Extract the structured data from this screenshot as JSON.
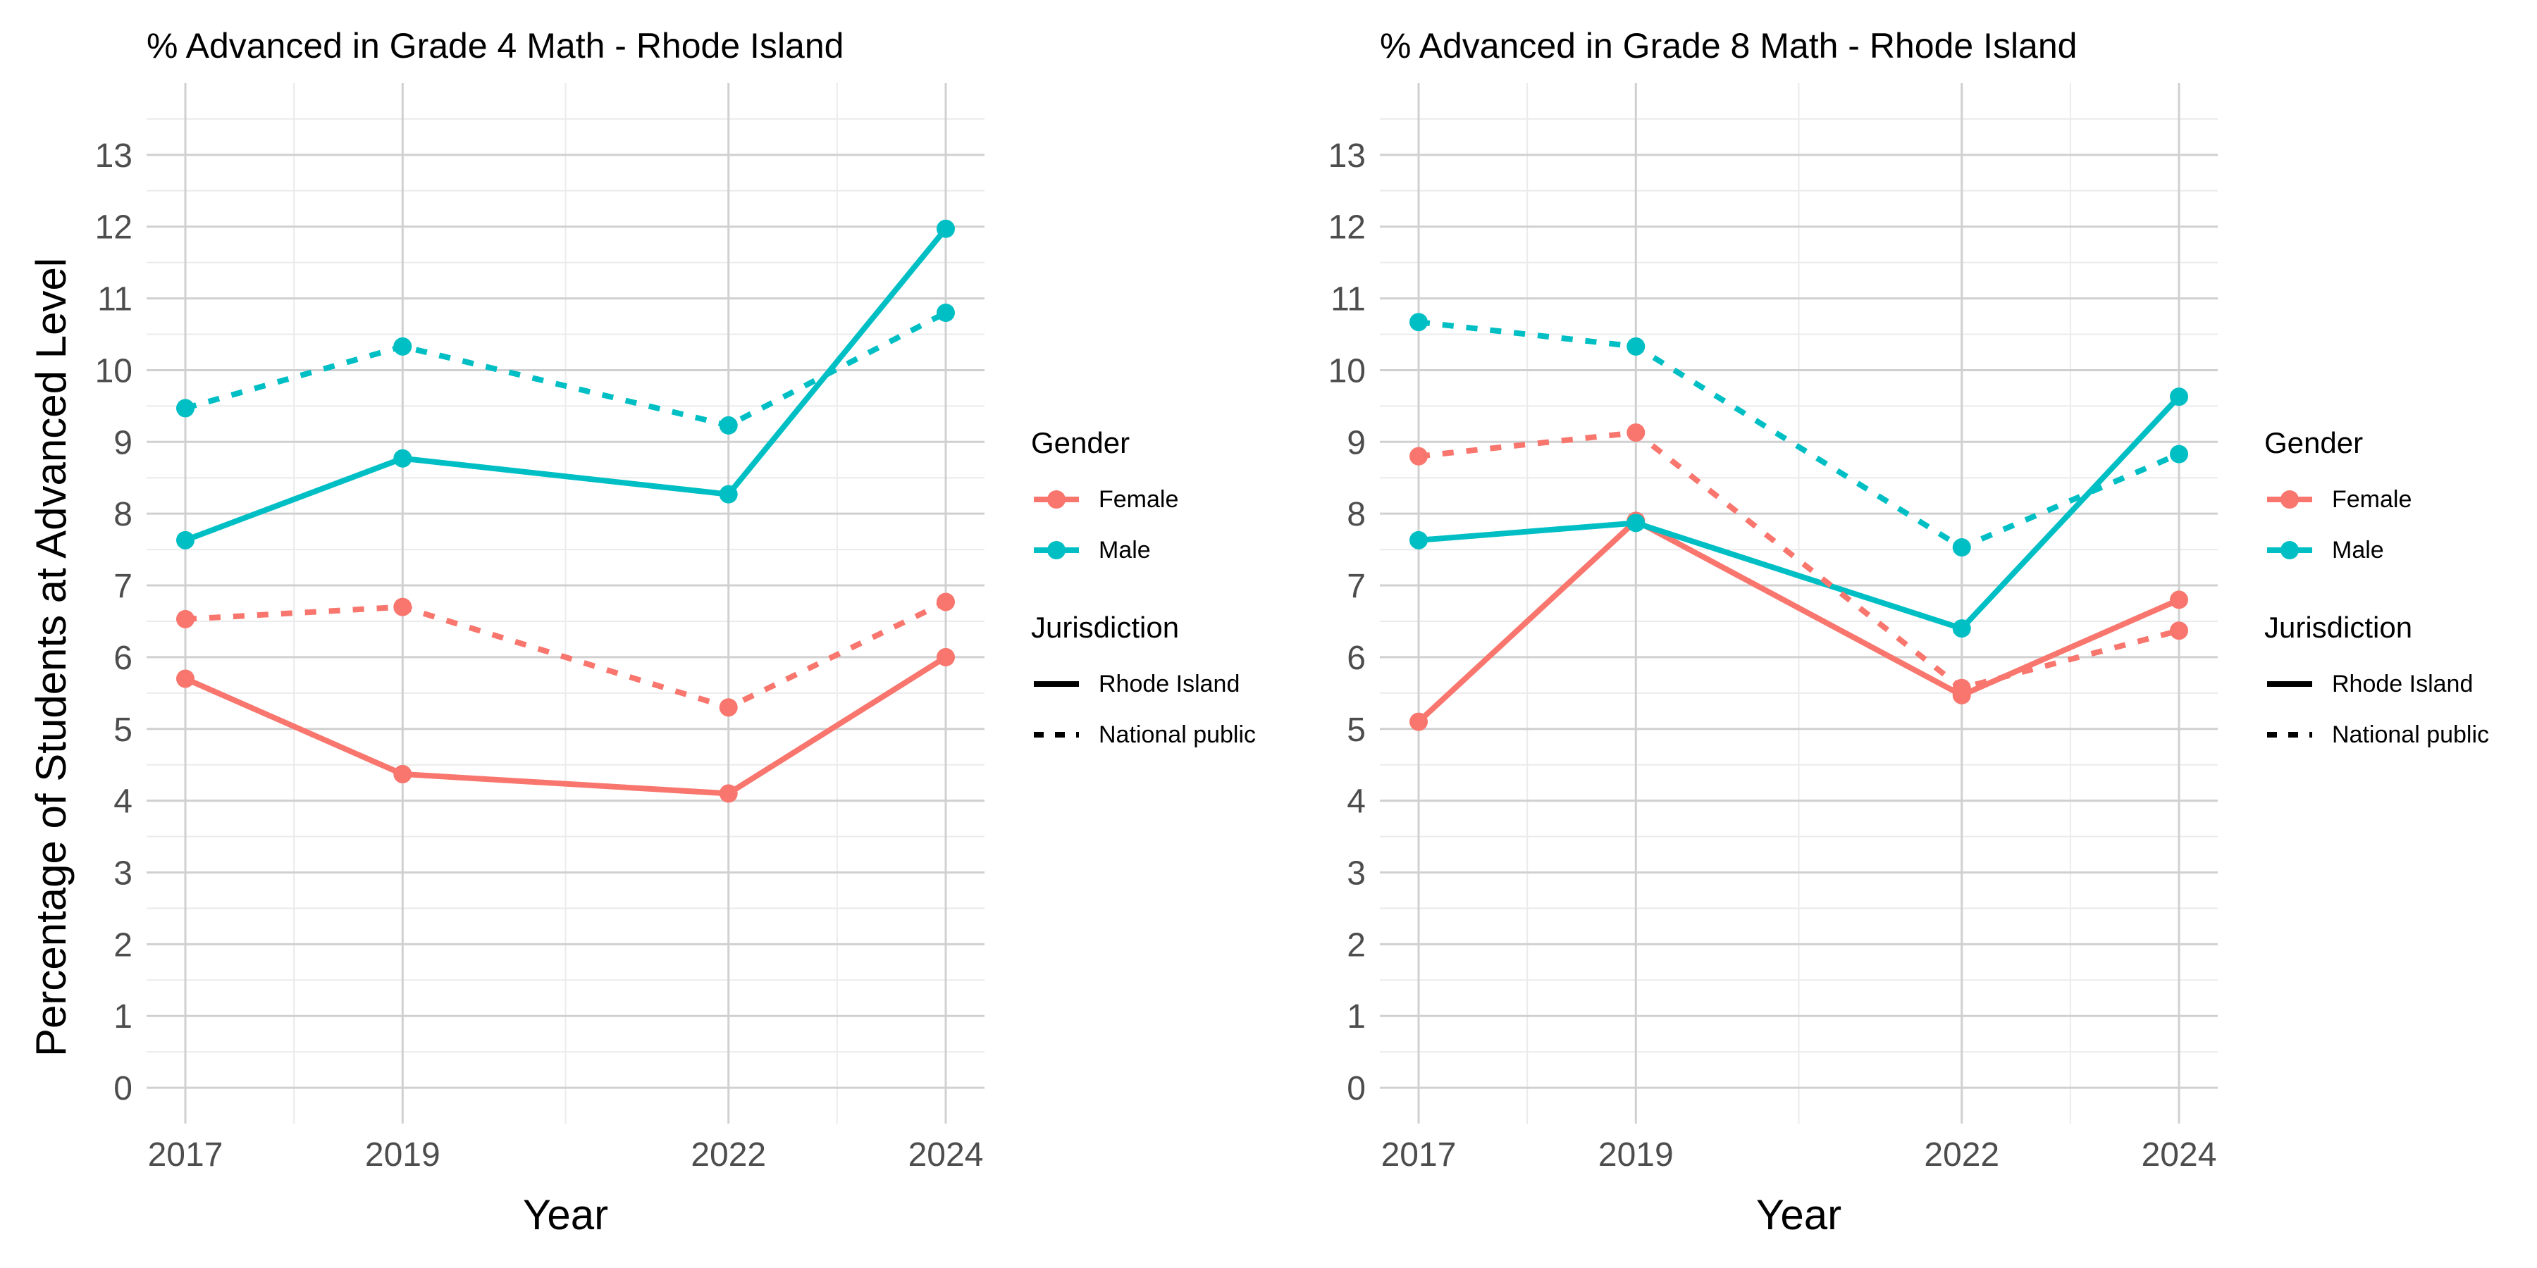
{
  "chart_data": [
    {
      "type": "line",
      "title": "% Advanced in Grade 4 Math - Rhode Island",
      "xlabel": "Year",
      "ylabel": "Percentage of Students at Advanced Level",
      "x": [
        2017,
        2019,
        2022,
        2024
      ],
      "x_ticks": [
        "2017",
        "2019",
        "2022",
        "2024"
      ],
      "y_ticks": [
        "0",
        "1",
        "2",
        "3",
        "4",
        "5",
        "6",
        "7",
        "8",
        "9",
        "10",
        "11",
        "12",
        "13"
      ],
      "ylim": [
        -0.5,
        14
      ],
      "grid": true,
      "series": [
        {
          "name": "Female",
          "group": "Rhode Island",
          "color": "#F8766D",
          "dash": "solid",
          "values": [
            5.7,
            4.37,
            4.1,
            6.0
          ]
        },
        {
          "name": "Male",
          "group": "Rhode Island",
          "color": "#00BFC4",
          "dash": "solid",
          "values": [
            7.63,
            8.77,
            8.27,
            11.97
          ]
        },
        {
          "name": "Female",
          "group": "National public",
          "color": "#F8766D",
          "dash": "dashed",
          "values": [
            6.53,
            6.7,
            5.3,
            6.77
          ]
        },
        {
          "name": "Male",
          "group": "National public",
          "color": "#00BFC4",
          "dash": "dashed",
          "values": [
            9.47,
            10.33,
            9.23,
            10.8
          ]
        }
      ]
    },
    {
      "type": "line",
      "title": "% Advanced in Grade 8 Math - Rhode Island",
      "xlabel": "Year",
      "ylabel": "",
      "x": [
        2017,
        2019,
        2022,
        2024
      ],
      "x_ticks": [
        "2017",
        "2019",
        "2022",
        "2024"
      ],
      "y_ticks": [
        "0",
        "1",
        "2",
        "3",
        "4",
        "5",
        "6",
        "7",
        "8",
        "9",
        "10",
        "11",
        "12",
        "13"
      ],
      "ylim": [
        -0.5,
        14
      ],
      "grid": true,
      "series": [
        {
          "name": "Female",
          "group": "Rhode Island",
          "color": "#F8766D",
          "dash": "solid",
          "values": [
            5.1,
            7.9,
            5.47,
            6.8
          ]
        },
        {
          "name": "Male",
          "group": "Rhode Island",
          "color": "#00BFC4",
          "dash": "solid",
          "values": [
            7.63,
            7.87,
            6.4,
            9.63
          ]
        },
        {
          "name": "Female",
          "group": "National public",
          "color": "#F8766D",
          "dash": "dashed",
          "values": [
            8.8,
            9.13,
            5.57,
            6.37
          ]
        },
        {
          "name": "Male",
          "group": "National public",
          "color": "#00BFC4",
          "dash": "dashed",
          "values": [
            10.67,
            10.33,
            7.53,
            8.83
          ]
        }
      ]
    }
  ],
  "legends": [
    {
      "gender_title": "Gender",
      "gender_items": [
        {
          "label": "Female",
          "color": "#F8766D"
        },
        {
          "label": "Male",
          "color": "#00BFC4"
        }
      ],
      "jurisdiction_title": "Jurisdiction",
      "jurisdiction_items": [
        {
          "label": "Rhode Island",
          "dash": "solid"
        },
        {
          "label": "National public",
          "dash": "dashed"
        }
      ]
    },
    {
      "gender_title": "Gender",
      "gender_items": [
        {
          "label": "Female",
          "color": "#F8766D"
        },
        {
          "label": "Male",
          "color": "#00BFC4"
        }
      ],
      "jurisdiction_title": "Jurisdiction",
      "jurisdiction_items": [
        {
          "label": "Rhode Island",
          "dash": "solid"
        },
        {
          "label": "National public",
          "dash": "dashed"
        }
      ]
    }
  ]
}
